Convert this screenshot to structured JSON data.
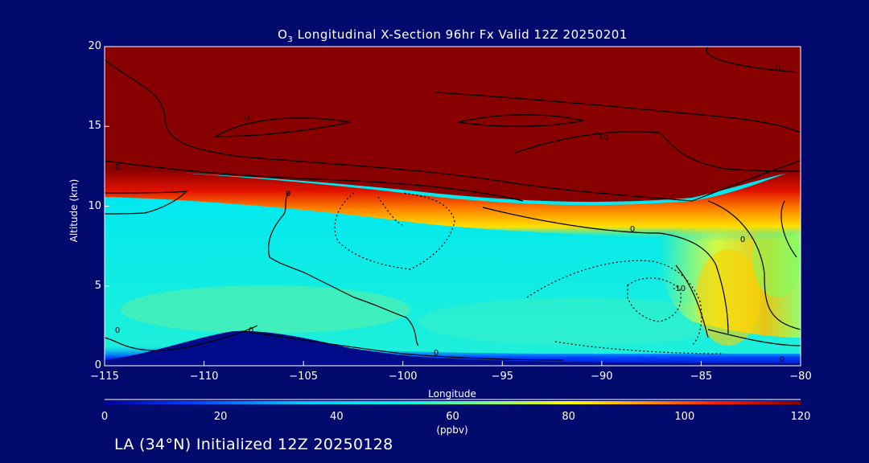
{
  "chart_data": {
    "type": "heatmap",
    "title_prefix": "O",
    "title_sub": "3",
    "title_rest": " Longitudinal X-Section 96hr  Fx Valid 12Z 20250201",
    "xlabel": "Longitude",
    "ylabel": "Altitude (km)",
    "xlim": [
      -115,
      -80
    ],
    "ylim": [
      0,
      20
    ],
    "x_ticks": [
      -115,
      -110,
      -105,
      -100,
      -95,
      -90,
      -85,
      -80
    ],
    "x_tick_labels": [
      "−115",
      "−110",
      "−105",
      "−100",
      "−95",
      "−90",
      "−85",
      "−80"
    ],
    "y_ticks": [
      0,
      5,
      10,
      15,
      20
    ],
    "y_tick_labels": [
      "0",
      "5",
      "10",
      "15",
      "20"
    ],
    "colorbar": {
      "min": 0,
      "max": 120,
      "ticks": [
        0,
        20,
        40,
        60,
        80,
        100,
        120
      ],
      "tick_labels": [
        "0",
        "20",
        "40",
        "60",
        "80",
        "100",
        "120"
      ],
      "units": "(ppbv)"
    },
    "contour_labels": [
      "0",
      "0",
      "0",
      "0",
      "10",
      "-10",
      "0",
      "0",
      "0",
      "0",
      "0",
      "0"
    ],
    "footer": "LA (34°N) Initialized 12Z 20250128",
    "colors": {
      "background": "#030a6e",
      "strat": "#880000",
      "terrain": "#020c8a"
    }
  }
}
